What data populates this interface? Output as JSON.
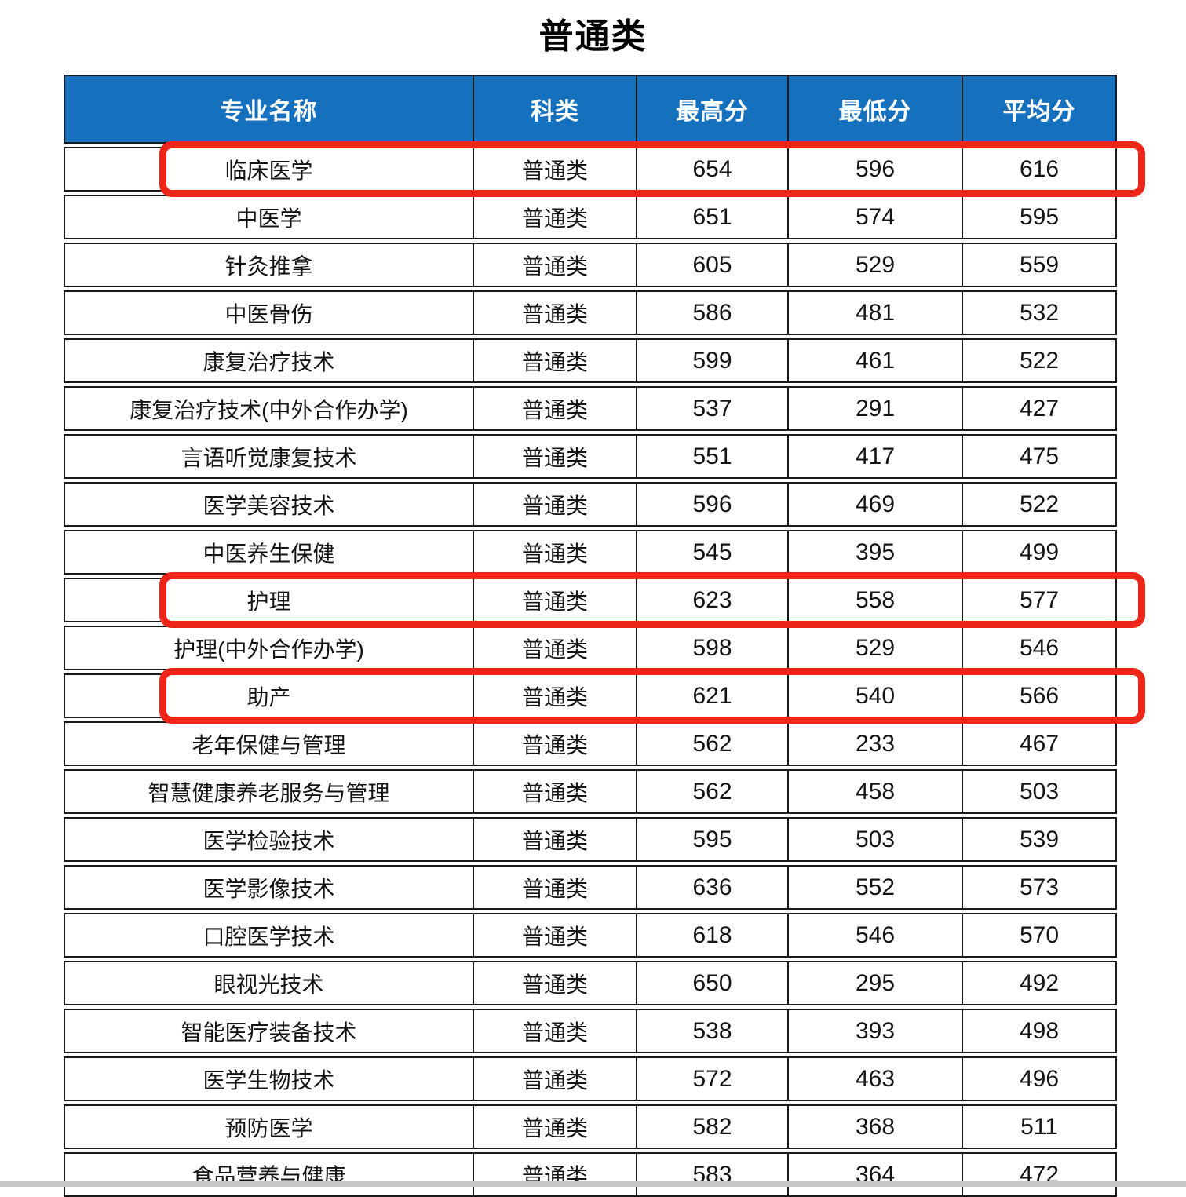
{
  "page": {
    "title": "普通类"
  },
  "colors": {
    "header_bg": "#1571bd",
    "header_text": "#ffffff",
    "grid": "#1a1a1a",
    "highlight_red": "#ee2519",
    "bottom_bar": "#c8c8c8"
  },
  "table": {
    "columns": [
      "专业名称",
      "科类",
      "最高分",
      "最低分",
      "平均分"
    ],
    "rows": [
      {
        "major": "临床医学",
        "category": "普通类",
        "max": "654",
        "min": "596",
        "avg": "616",
        "highlighted": true
      },
      {
        "major": "中医学",
        "category": "普通类",
        "max": "651",
        "min": "574",
        "avg": "595",
        "highlighted": false
      },
      {
        "major": "针灸推拿",
        "category": "普通类",
        "max": "605",
        "min": "529",
        "avg": "559",
        "highlighted": false
      },
      {
        "major": "中医骨伤",
        "category": "普通类",
        "max": "586",
        "min": "481",
        "avg": "532",
        "highlighted": false
      },
      {
        "major": "康复治疗技术",
        "category": "普通类",
        "max": "599",
        "min": "461",
        "avg": "522",
        "highlighted": false
      },
      {
        "major": "康复治疗技术(中外合作办学)",
        "category": "普通类",
        "max": "537",
        "min": "291",
        "avg": "427",
        "highlighted": false
      },
      {
        "major": "言语听觉康复技术",
        "category": "普通类",
        "max": "551",
        "min": "417",
        "avg": "475",
        "highlighted": false
      },
      {
        "major": "医学美容技术",
        "category": "普通类",
        "max": "596",
        "min": "469",
        "avg": "522",
        "highlighted": false
      },
      {
        "major": "中医养生保健",
        "category": "普通类",
        "max": "545",
        "min": "395",
        "avg": "499",
        "highlighted": false
      },
      {
        "major": "护理",
        "category": "普通类",
        "max": "623",
        "min": "558",
        "avg": "577",
        "highlighted": true
      },
      {
        "major": "护理(中外合作办学)",
        "category": "普通类",
        "max": "598",
        "min": "529",
        "avg": "546",
        "highlighted": false
      },
      {
        "major": "助产",
        "category": "普通类",
        "max": "621",
        "min": "540",
        "avg": "566",
        "highlighted": true
      },
      {
        "major": "老年保健与管理",
        "category": "普通类",
        "max": "562",
        "min": "233",
        "avg": "467",
        "highlighted": false
      },
      {
        "major": "智慧健康养老服务与管理",
        "category": "普通类",
        "max": "562",
        "min": "458",
        "avg": "503",
        "highlighted": false
      },
      {
        "major": "医学检验技术",
        "category": "普通类",
        "max": "595",
        "min": "503",
        "avg": "539",
        "highlighted": false
      },
      {
        "major": "医学影像技术",
        "category": "普通类",
        "max": "636",
        "min": "552",
        "avg": "573",
        "highlighted": false
      },
      {
        "major": "口腔医学技术",
        "category": "普通类",
        "max": "618",
        "min": "546",
        "avg": "570",
        "highlighted": false
      },
      {
        "major": "眼视光技术",
        "category": "普通类",
        "max": "650",
        "min": "295",
        "avg": "492",
        "highlighted": false
      },
      {
        "major": "智能医疗装备技术",
        "category": "普通类",
        "max": "538",
        "min": "393",
        "avg": "498",
        "highlighted": false
      },
      {
        "major": "医学生物技术",
        "category": "普通类",
        "max": "572",
        "min": "463",
        "avg": "496",
        "highlighted": false
      },
      {
        "major": "预防医学",
        "category": "普通类",
        "max": "582",
        "min": "368",
        "avg": "511",
        "highlighted": false
      },
      {
        "major": "食品营养与健康",
        "category": "普通类",
        "max": "583",
        "min": "364",
        "avg": "472",
        "highlighted": false
      }
    ]
  }
}
